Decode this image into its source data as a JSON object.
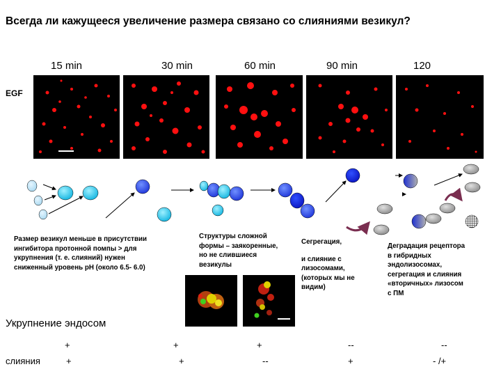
{
  "title": "Всегда ли кажущееся увеличение размера связано со слияниями везикул?",
  "timepoints": [
    "15 min",
    "30 min",
    "60 min",
    "90 min",
    "120"
  ],
  "row_label": "EGF",
  "captions": {
    "c1": [
      "Размер везикул меньше в присутствии",
      "ингибитора протонной помпы > для",
      "укрупнения (т. е. слияний) нужен",
      "сниженный уровень pH (около 6.5- 6.0)"
    ],
    "c2": [
      "Структуры сложной",
      "формы – заякоренные,",
      "но не слившиеся",
      "везикулы"
    ],
    "c3a": "Сегрегация,",
    "c3b": [
      "и слияние с",
      "лизосомами,",
      "(которых мы не",
      "видим)"
    ],
    "c4": [
      "Деградация рецептора",
      " в гибридных",
      "эндолизосомах,",
      "сегрегация и слияния",
      "«вторичных» лизосом",
      "с ПМ"
    ]
  },
  "coarsening_label": "Укрупнение эндосом",
  "coarsening_marks": [
    "+",
    "+",
    "+",
    "--",
    "--"
  ],
  "fusion_label": "слияния",
  "fusion_marks": [
    "+",
    "+",
    "--",
    "+",
    "- /+"
  ],
  "colors": {
    "egf_red": "#ff1010",
    "cyan": "#1ec8f0",
    "blue": "#2840e0",
    "dark_blue": "#0a1ed2",
    "gray": "#9a9a9a",
    "arrow_purple": "#7a2e50"
  }
}
